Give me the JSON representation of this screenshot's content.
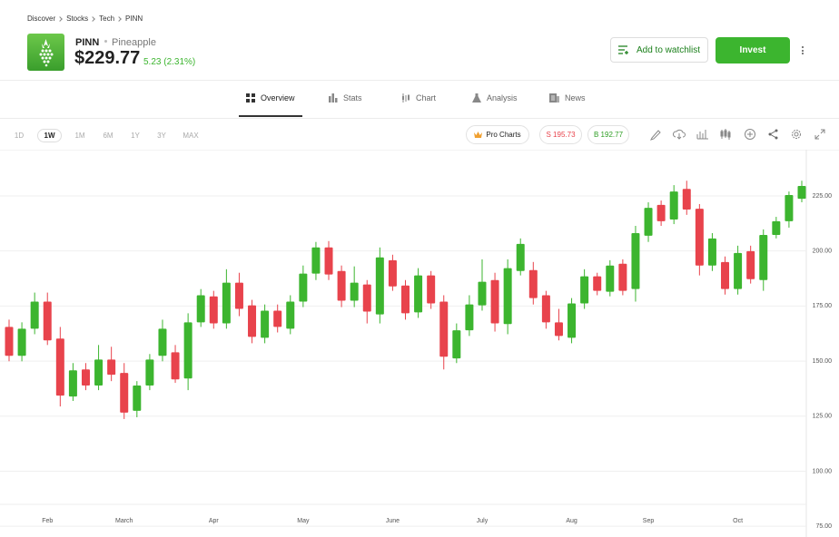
{
  "breadcrumb": [
    "Discover",
    "Stocks",
    "Tech",
    "PINN"
  ],
  "header": {
    "ticker": "PINN",
    "name": "Pineapple",
    "price": "$229.77",
    "change": "5.23 (2.31%)",
    "watchlist_button": "Add to watchlist",
    "invest_button": "Invest"
  },
  "tabs": [
    "Overview",
    "Stats",
    "Chart",
    "Analysis",
    "News"
  ],
  "timeframes": [
    "1D",
    "1W",
    "1M",
    "6M",
    "1Y",
    "3Y",
    "MAX"
  ],
  "toolbar": {
    "pro_charts": "Pro Charts",
    "sell": "S 195.73",
    "buy": "B 192.77"
  },
  "chart_data": {
    "type": "candlestick",
    "categories": [
      null,
      null,
      null,
      "Feb",
      null,
      null,
      null,
      null,
      null,
      "March",
      null,
      null,
      null,
      null,
      null,
      null,
      "Apr",
      null,
      null,
      null,
      null,
      null,
      null,
      "May",
      null,
      null,
      null,
      null,
      null,
      null,
      "June",
      null,
      null,
      null,
      null,
      null,
      null,
      "July",
      null,
      null,
      null,
      null,
      null,
      null,
      "Aug",
      null,
      null,
      null,
      null,
      null,
      "Sep",
      null,
      null,
      null,
      null,
      null,
      null,
      "Oct",
      null,
      null,
      null,
      null,
      null
    ],
    "series": [
      {
        "open": [
          165.5,
          152.4,
          164.7,
          177,
          160.2,
          133.9,
          146.2,
          138.9,
          150.7,
          144.6,
          127.4,
          138.9,
          152.4,
          154,
          142.1,
          167.6,
          179.4,
          167.1,
          185.6,
          175.3,
          160.6,
          172.9,
          164.7,
          177,
          189.7,
          201.6,
          190.9,
          177.4,
          184.8,
          171.2,
          195.8,
          184.3,
          172.1,
          188.9,
          177,
          151.2,
          164,
          175.3,
          186.8,
          166.8,
          190.9,
          191.3,
          179.9,
          167.6,
          160.6,
          176.2,
          188.5,
          181.5,
          194.2,
          182.7,
          206.9,
          220.9,
          214.3,
          228.2,
          219.2,
          193.4,
          195,
          182.7,
          199.9,
          186.8,
          207.3,
          213.5,
          223.7
        ],
        "high": [
          168.8,
          167.6,
          181.1,
          181.1,
          165.5,
          149.1,
          149.1,
          157.3,
          156.5,
          149.1,
          140.9,
          153.2,
          168.8,
          157.3,
          171.7,
          182.7,
          181.9,
          191.7,
          190.1,
          177.8,
          175.7,
          175.7,
          179.9,
          193.4,
          204.1,
          204.5,
          193.4,
          193,
          186.8,
          201.6,
          198.3,
          186.8,
          192.2,
          190.9,
          179.9,
          167.1,
          179.9,
          196.2,
          190.1,
          196.2,
          205.7,
          195,
          181.9,
          173.7,
          178.6,
          191.7,
          190.1,
          195.8,
          196.2,
          211.4,
          222.1,
          222.9,
          229.9,
          231.9,
          221.3,
          208.1,
          197.5,
          202.4,
          202.4,
          209.8,
          215.5,
          227,
          231.9
        ],
        "low": [
          149.9,
          149.9,
          162.2,
          157.3,
          129.4,
          131.9,
          136.8,
          136.8,
          140.9,
          123.7,
          124.5,
          136.8,
          149.9,
          140.1,
          136.8,
          165.5,
          164.7,
          164.7,
          170.4,
          158.1,
          158.1,
          163,
          162.2,
          174.5,
          186.8,
          186.8,
          174.5,
          174.5,
          167.1,
          167.1,
          181.9,
          168.8,
          169.6,
          173.7,
          146.2,
          149.1,
          161.4,
          172.9,
          163.4,
          162.2,
          188.9,
          175.7,
          164.7,
          159.4,
          158.1,
          173.7,
          179.9,
          179.4,
          179.9,
          177,
          204.1,
          211.4,
          212.2,
          216.4,
          188.9,
          190.9,
          180.2,
          180.2,
          185.2,
          181.9,
          205.7,
          210.6,
          222.1
        ],
        "close": [
          152.4,
          164.7,
          177,
          159.4,
          134.3,
          145.8,
          138.9,
          150.7,
          143.8,
          126.6,
          138.9,
          150.7,
          164.7,
          141.7,
          167.6,
          179.9,
          167.1,
          185.6,
          173.7,
          161,
          172.9,
          165.5,
          177,
          189.7,
          201.6,
          189.3,
          177.4,
          185.6,
          172.5,
          197.1,
          183.9,
          171.7,
          188.9,
          176.2,
          152,
          164,
          175.7,
          186,
          167.1,
          192.2,
          203.2,
          178.6,
          167.6,
          161.4,
          176.2,
          188.5,
          181.9,
          193.4,
          181.9,
          208.1,
          219.6,
          213.5,
          227,
          218.8,
          193.4,
          205.7,
          182.7,
          199.1,
          187.2,
          207.3,
          213.5,
          225.4,
          229.5
        ]
      }
    ],
    "up_color": "#3cb52f",
    "down_color": "#e8434c",
    "ylim": [
      73,
      246
    ],
    "yticks": [
      {
        "value": 225,
        "label": "225.00"
      },
      {
        "value": 200,
        "label": "200.00"
      },
      {
        "value": 175,
        "label": "175.00"
      },
      {
        "value": 150,
        "label": "150.00"
      },
      {
        "value": 125,
        "label": "125.00"
      },
      {
        "value": 100,
        "label": "100.00"
      },
      {
        "value": 75,
        "label": "75.00"
      }
    ],
    "grid": true
  }
}
